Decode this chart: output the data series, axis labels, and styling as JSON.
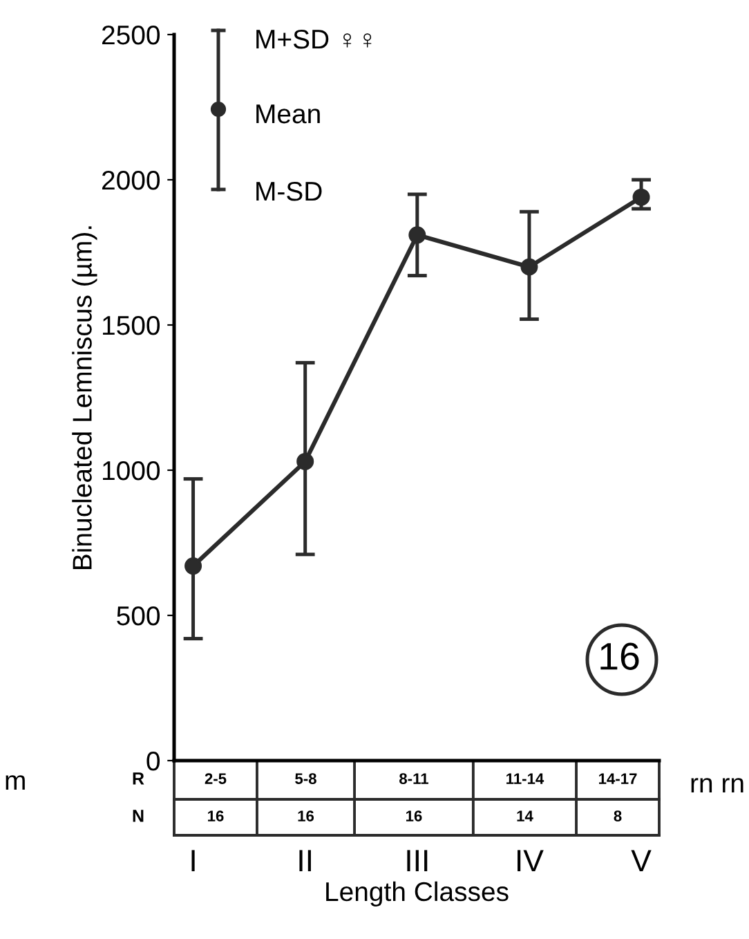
{
  "chart_data": {
    "type": "line",
    "ylabel": "Binucleated Lemniscus (µm).",
    "xlabel": "Length Classes",
    "categories": [
      "I",
      "II",
      "III",
      "IV",
      "V"
    ],
    "values": [
      670,
      1030,
      1810,
      1700,
      1940
    ],
    "errors": [
      [
        420,
        970
      ],
      [
        710,
        1370
      ],
      [
        1670,
        1950
      ],
      [
        1520,
        1890
      ],
      [
        1900,
        2000
      ]
    ],
    "color": "#2b2b2b",
    "marker": "circle",
    "line_style": "solid",
    "ylim": [
      0,
      2500
    ],
    "yticks": [
      0,
      500,
      1000,
      1500,
      2000,
      2500
    ],
    "grid": false,
    "legend": false,
    "annotations": [
      "M+SD ♀♀",
      "Mean",
      "M-SD",
      "16",
      "R",
      "N",
      "2-5",
      "5-8",
      "8-11",
      "11-14",
      "14-17",
      "16",
      "16",
      "16",
      "14",
      "8",
      "m",
      "rn rn"
    ]
  }
}
